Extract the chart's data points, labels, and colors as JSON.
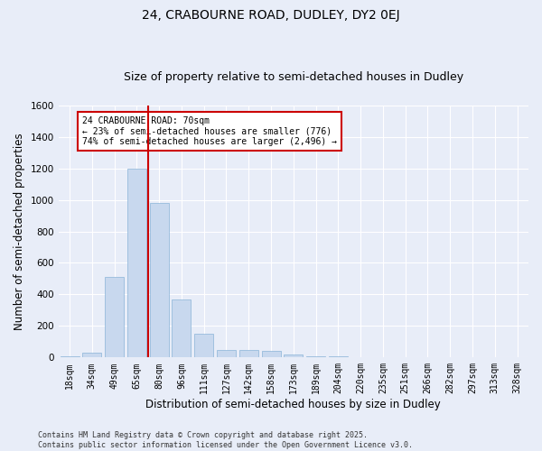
{
  "title": "24, CRABOURNE ROAD, DUDLEY, DY2 0EJ",
  "subtitle": "Size of property relative to semi-detached houses in Dudley",
  "xlabel": "Distribution of semi-detached houses by size in Dudley",
  "ylabel": "Number of semi-detached properties",
  "categories": [
    "18sqm",
    "34sqm",
    "49sqm",
    "65sqm",
    "80sqm",
    "96sqm",
    "111sqm",
    "127sqm",
    "142sqm",
    "158sqm",
    "173sqm",
    "189sqm",
    "204sqm",
    "220sqm",
    "235sqm",
    "251sqm",
    "266sqm",
    "282sqm",
    "297sqm",
    "313sqm",
    "328sqm"
  ],
  "values": [
    5,
    30,
    510,
    1200,
    980,
    370,
    150,
    50,
    45,
    40,
    20,
    10,
    5,
    0,
    0,
    0,
    0,
    0,
    0,
    0,
    0
  ],
  "bar_color": "#c8d8ee",
  "bar_edge_color": "#8ab4d8",
  "red_line_index": 3.5,
  "annotation_line1": "24 CRABOURNE ROAD: 70sqm",
  "annotation_line2": "← 23% of semi-detached houses are smaller (776)",
  "annotation_line3": "74% of semi-detached houses are larger (2,496) →",
  "annotation_box_color": "#ffffff",
  "annotation_box_edge": "#cc0000",
  "red_line_color": "#cc0000",
  "background_color": "#e8edf8",
  "plot_bg_color": "#e8edf8",
  "ylim": [
    0,
    1600
  ],
  "yticks": [
    0,
    200,
    400,
    600,
    800,
    1000,
    1200,
    1400,
    1600
  ],
  "grid_color": "#ffffff",
  "title_fontsize": 10,
  "subtitle_fontsize": 9,
  "axis_label_fontsize": 8.5,
  "tick_fontsize": 7,
  "footer_line1": "Contains HM Land Registry data © Crown copyright and database right 2025.",
  "footer_line2": "Contains public sector information licensed under the Open Government Licence v3.0."
}
